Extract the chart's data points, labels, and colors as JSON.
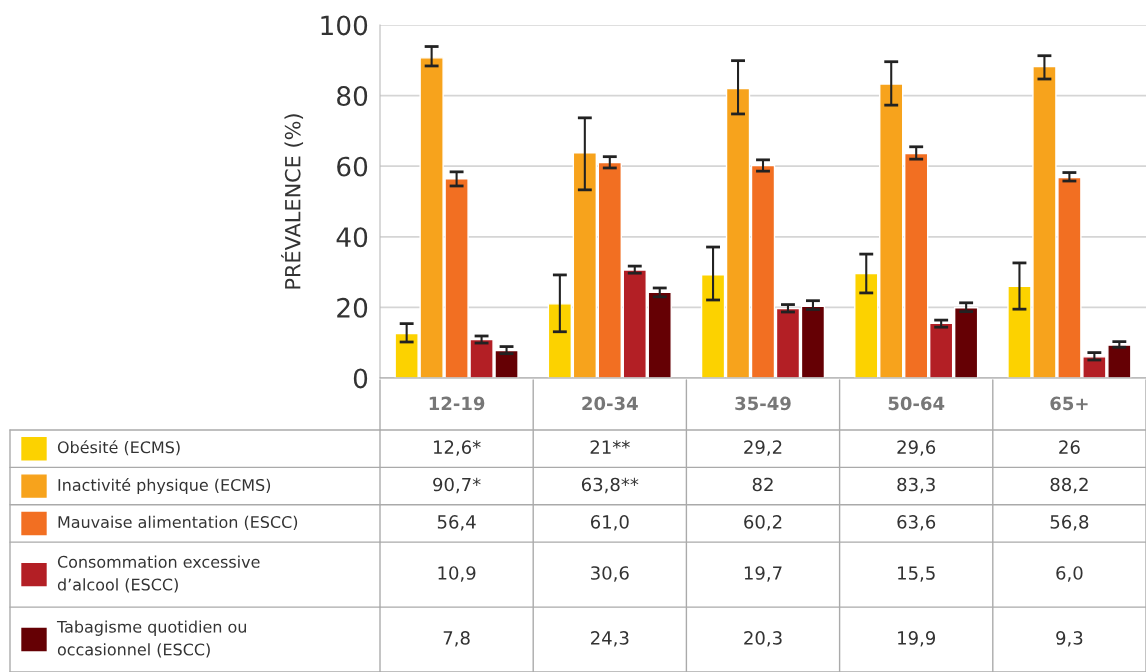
{
  "chart_data": {
    "type": "bar",
    "ylabel": "PRÉVALENCE (%)",
    "categories": [
      "12-19",
      "20-34",
      "35-49",
      "50-64",
      "65+"
    ],
    "ylim": [
      0,
      100
    ],
    "yticks": [
      0,
      20,
      40,
      60,
      80,
      100
    ],
    "grid": "y",
    "legend": "bottom",
    "series": [
      {
        "name": "Obésité (ECMS)",
        "color": "#fcd200",
        "values": [
          12.6,
          21,
          29.2,
          29.6,
          26
        ],
        "errors": [
          [
            10.2,
            15.4
          ],
          [
            13.1,
            29.2
          ],
          [
            22.1,
            37.1
          ],
          [
            24.1,
            35.1
          ],
          [
            19.5,
            32.6
          ]
        ],
        "value_labels": [
          "12,6*",
          "21**",
          "29,2",
          "29,6",
          "26"
        ]
      },
      {
        "name": "Inactivité physique (ECMS)",
        "color": "#f7a31c",
        "values": [
          90.7,
          63.8,
          82,
          83.3,
          88.2
        ],
        "errors": [
          [
            88.4,
            93.9
          ],
          [
            53.3,
            73.7
          ],
          [
            74.8,
            89.9
          ],
          [
            77.3,
            89.6
          ],
          [
            84.7,
            91.3
          ]
        ],
        "value_labels": [
          "90,7*",
          "63,8**",
          "82",
          "83,3",
          "88,2"
        ]
      },
      {
        "name": "Mauvaise alimentation (ESCC)",
        "color": "#f26f22",
        "values": [
          56.4,
          61.0,
          60.2,
          63.6,
          56.8
        ],
        "errors": [
          [
            54.4,
            58.4
          ],
          [
            59.5,
            62.7
          ],
          [
            58.6,
            61.8
          ],
          [
            62.0,
            65.5
          ],
          [
            55.8,
            58.2
          ]
        ],
        "value_labels": [
          "56,4",
          "61,0",
          "60,2",
          "63,6",
          "56,8"
        ]
      },
      {
        "name": "Consommation excessive\nd’alcool (ESCC)",
        "color": "#b31f25",
        "values": [
          10.9,
          30.6,
          19.7,
          15.5,
          6.0
        ],
        "errors": [
          [
            9.9,
            11.9
          ],
          [
            29.7,
            31.7
          ],
          [
            18.7,
            20.8
          ],
          [
            14.4,
            16.4
          ],
          [
            5.1,
            7.2
          ]
        ],
        "value_labels": [
          "10,9",
          "30,6",
          "19,7",
          "15,5",
          "6,0"
        ]
      },
      {
        "name": "Tabagisme quotidien ou\noccasionnel (ESCC)",
        "color": "#650004",
        "values": [
          7.8,
          24.3,
          20.3,
          19.9,
          9.3
        ],
        "errors": [
          [
            6.9,
            8.9
          ],
          [
            23.0,
            25.5
          ],
          [
            19.4,
            21.9
          ],
          [
            18.8,
            21.3
          ],
          [
            8.7,
            10.3
          ]
        ],
        "value_labels": [
          "7,8",
          "24,3",
          "20,3",
          "19,9",
          "9,3"
        ]
      }
    ]
  }
}
